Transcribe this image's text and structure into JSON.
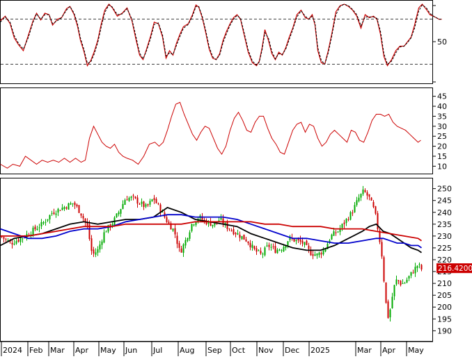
{
  "chart_data": [
    {
      "type": "line",
      "panel": "stochastic",
      "y_ticks": [
        "50"
      ],
      "ylim": [
        0,
        100
      ],
      "reference_lines": [
        80,
        20
      ],
      "series": [
        {
          "color": "#cc0000",
          "style": "solid",
          "x": [
            0,
            7,
            14,
            20,
            26,
            33,
            40,
            47,
            52,
            58,
            64,
            70,
            75,
            82,
            88,
            95,
            100,
            106,
            111,
            115,
            120,
            125,
            130,
            135,
            140,
            145,
            150,
            156,
            161,
            168,
            175,
            182,
            189,
            195,
            200,
            205,
            210,
            216,
            221,
            227,
            233,
            238,
            243,
            248,
            253,
            258,
            263,
            270,
            276,
            281,
            285,
            290,
            295,
            300,
            305,
            310,
            315,
            320,
            325,
            330,
            335,
            340,
            345,
            350,
            356,
            362,
            368,
            372,
            376,
            380,
            385,
            390,
            395,
            400,
            405,
            410,
            415,
            420,
            426,
            432,
            438,
            443,
            448,
            452,
            456,
            461,
            466,
            471,
            476,
            482,
            488,
            494,
            500,
            506,
            512,
            518,
            524,
            530,
            536,
            541,
            546,
            551,
            556,
            562,
            568,
            574,
            580,
            585,
            590,
            595,
            601,
            606,
            612,
            617,
            622,
            626,
            630,
            634
          ],
          "y": [
            78,
            84,
            74,
            55,
            46,
            38,
            58,
            78,
            88,
            79,
            88,
            86,
            72,
            80,
            82,
            94,
            97,
            86,
            70,
            52,
            37,
            18,
            25,
            37,
            52,
            74,
            92,
            100,
            95,
            84,
            88,
            95,
            78,
            52,
            32,
            26,
            40,
            58,
            76,
            74,
            56,
            28,
            38,
            32,
            48,
            60,
            70,
            74,
            86,
            99,
            96,
            82,
            62,
            40,
            28,
            26,
            34,
            52,
            64,
            74,
            82,
            86,
            80,
            60,
            36,
            22,
            18,
            24,
            42,
            66,
            52,
            34,
            26,
            36,
            32,
            42,
            56,
            68,
            86,
            92,
            82,
            80,
            86,
            72,
            38,
            22,
            20,
            38,
            60,
            90,
            98,
            100,
            97,
            92,
            84,
            68,
            86,
            82,
            84,
            80,
            60,
            30,
            18,
            26,
            38,
            44,
            44,
            50,
            56,
            72,
            95,
            100,
            93,
            86,
            84,
            82,
            80,
            80
          ]
        },
        {
          "color": "#000000",
          "style": "dashed",
          "x": [
            0,
            7,
            14,
            20,
            26,
            33,
            40,
            47,
            52,
            58,
            64,
            70,
            75,
            82,
            88,
            95,
            100,
            106,
            111,
            115,
            120,
            125,
            130,
            135,
            140,
            145,
            150,
            156,
            161,
            168,
            175,
            182,
            189,
            195,
            200,
            205,
            210,
            216,
            221,
            227,
            233,
            238,
            243,
            248,
            253,
            258,
            263,
            270,
            276,
            281,
            285,
            290,
            295,
            300,
            305,
            310,
            315,
            320,
            325,
            330,
            335,
            340,
            345,
            350,
            356,
            362,
            368,
            372,
            376,
            380,
            385,
            390,
            395,
            400,
            405,
            410,
            415,
            420,
            426,
            432,
            438,
            443,
            448,
            452,
            456,
            461,
            466,
            471,
            476,
            482,
            488,
            494,
            500,
            506,
            512,
            518,
            524,
            530,
            536,
            541,
            546,
            551,
            556,
            562,
            568,
            574,
            580,
            585,
            590,
            595,
            601,
            606,
            612,
            617,
            622,
            626,
            630,
            634
          ],
          "y": [
            76,
            83,
            76,
            58,
            48,
            40,
            55,
            76,
            87,
            80,
            86,
            86,
            74,
            78,
            82,
            92,
            97,
            88,
            73,
            55,
            40,
            21,
            23,
            34,
            49,
            70,
            89,
            99,
            96,
            86,
            87,
            94,
            80,
            56,
            35,
            27,
            38,
            55,
            73,
            75,
            59,
            31,
            35,
            33,
            45,
            57,
            68,
            73,
            84,
            97,
            97,
            84,
            65,
            43,
            30,
            26,
            32,
            49,
            61,
            72,
            80,
            85,
            81,
            63,
            39,
            24,
            19,
            23,
            39,
            62,
            55,
            37,
            27,
            34,
            33,
            40,
            53,
            66,
            83,
            91,
            84,
            80,
            84,
            75,
            42,
            25,
            20,
            35,
            57,
            86,
            97,
            100,
            98,
            93,
            86,
            71,
            83,
            83,
            83,
            81,
            64,
            34,
            20,
            24,
            35,
            43,
            44,
            49,
            55,
            68,
            91,
            99,
            95,
            88,
            84,
            82,
            80,
            80
          ]
        }
      ]
    },
    {
      "type": "line",
      "panel": "adx",
      "y_ticks": [
        "45",
        "40",
        "35",
        "30",
        "25",
        "20",
        "15",
        "10"
      ],
      "ylim": [
        7,
        48
      ],
      "series": [
        {
          "color": "#cc0000",
          "style": "solid",
          "x": [
            0,
            10,
            18,
            28,
            36,
            44,
            52,
            60,
            68,
            76,
            84,
            92,
            100,
            108,
            116,
            122,
            128,
            134,
            140,
            146,
            152,
            158,
            164,
            170,
            176,
            182,
            190,
            198,
            206,
            214,
            222,
            228,
            234,
            240,
            246,
            252,
            258,
            264,
            270,
            276,
            282,
            288,
            294,
            300,
            306,
            312,
            318,
            324,
            330,
            336,
            342,
            348,
            354,
            360,
            366,
            372,
            378,
            384,
            390,
            396,
            402,
            408,
            414,
            420,
            426,
            432,
            438,
            444,
            450,
            456,
            462,
            468,
            474,
            480,
            486,
            492,
            498,
            504,
            510,
            516,
            522,
            528,
            534,
            540,
            546,
            552,
            558,
            564,
            570,
            576,
            582,
            588,
            594,
            600,
            604
          ],
          "y": [
            11,
            9,
            11,
            10,
            15,
            13,
            11,
            13,
            12,
            13,
            12,
            14,
            12,
            14,
            12,
            13,
            24,
            30,
            26,
            22,
            20,
            19,
            21,
            17,
            15,
            14,
            13,
            11,
            15,
            21,
            22,
            20,
            22,
            28,
            35,
            41,
            42,
            36,
            31,
            26,
            23,
            27,
            30,
            29,
            24,
            19,
            16,
            20,
            28,
            34,
            37,
            33,
            28,
            27,
            32,
            35,
            35,
            29,
            24,
            21,
            17,
            16,
            22,
            28,
            31,
            32,
            27,
            31,
            30,
            24,
            20,
            22,
            26,
            28,
            26,
            24,
            22,
            28,
            27,
            23,
            22,
            27,
            33,
            36,
            36,
            35,
            36,
            32,
            30,
            29,
            28,
            26,
            24,
            22,
            23
          ]
        }
      ]
    },
    {
      "type": "candlestick",
      "panel": "price",
      "y_ticks": [
        "250",
        "245",
        "240",
        "235",
        "230",
        "225",
        "220",
        "215",
        "210",
        "205",
        "200",
        "195",
        "190"
      ],
      "ylim": [
        186,
        254
      ],
      "price_label": "216.4200",
      "x_ticks": [
        "2024",
        "Feb",
        "Mar",
        "Apr",
        "May",
        "Jun",
        "Jul",
        "Aug",
        "Sep",
        "Oct",
        "Nov",
        "Dec",
        "2025",
        "Mar",
        "Apr",
        "May"
      ],
      "price_series": {
        "x": [
          0,
          15,
          30,
          45,
          60,
          75,
          90,
          105,
          115,
          125,
          132,
          140,
          150,
          160,
          170,
          180,
          190,
          200,
          210,
          220,
          230,
          240,
          250,
          258,
          266,
          275,
          285,
          295,
          305,
          315,
          325,
          335,
          345,
          355,
          365,
          375,
          385,
          395,
          405,
          415,
          425,
          435,
          445,
          455,
          465,
          475,
          485,
          495,
          505,
          515,
          522,
          530,
          538,
          544,
          548,
          552,
          556,
          560,
          565,
          570,
          575,
          580,
          585,
          590,
          595,
          600,
          605
        ],
        "y": [
          230,
          227,
          229,
          232,
          235,
          240,
          242,
          244,
          240,
          234,
          222,
          224,
          232,
          235,
          240,
          246,
          246,
          244,
          242,
          246,
          241,
          236,
          232,
          223,
          228,
          235,
          238,
          236,
          235,
          237,
          234,
          232,
          230,
          228,
          224,
          222,
          226,
          224,
          225,
          229,
          228,
          227,
          223,
          222,
          224,
          230,
          232,
          236,
          240,
          246,
          249,
          246,
          240,
          230,
          222,
          208,
          195,
          199,
          208,
          212,
          210,
          210,
          212,
          214,
          216,
          218,
          216
        ]
      },
      "series": [
        {
          "color": "#000000",
          "x": [
            0,
            20,
            40,
            60,
            80,
            100,
            120,
            140,
            160,
            180,
            200,
            220,
            240,
            260,
            280,
            300,
            320,
            340,
            360,
            380,
            400,
            420,
            440,
            460,
            480,
            500,
            520,
            530,
            540,
            550,
            560,
            570,
            580,
            590,
            600,
            605
          ],
          "y": [
            226,
            229,
            230,
            231,
            233,
            235,
            236,
            235,
            236,
            237,
            237,
            238,
            242,
            240,
            237,
            236,
            235,
            234,
            231,
            229,
            227,
            225,
            224,
            224,
            226,
            229,
            232,
            234,
            235,
            232,
            231,
            229,
            227,
            225,
            224,
            223
          ]
        },
        {
          "color": "#0000cc",
          "x": [
            0,
            20,
            40,
            60,
            80,
            100,
            120,
            140,
            160,
            180,
            200,
            220,
            240,
            260,
            280,
            300,
            320,
            340,
            360,
            380,
            400,
            420,
            440,
            460,
            480,
            500,
            520,
            540,
            550,
            560,
            570,
            580,
            590,
            600,
            605
          ],
          "y": [
            233,
            231,
            229,
            229,
            230,
            232,
            233,
            233,
            234,
            236,
            237,
            238,
            239,
            239,
            238,
            238,
            238,
            237,
            235,
            233,
            231,
            229,
            229,
            228,
            227,
            227,
            228,
            229,
            229,
            228,
            227,
            227,
            226,
            226,
            225
          ]
        },
        {
          "color": "#cc0000",
          "x": [
            0,
            20,
            40,
            60,
            80,
            100,
            120,
            140,
            160,
            180,
            200,
            220,
            240,
            260,
            280,
            300,
            320,
            340,
            360,
            380,
            400,
            420,
            440,
            460,
            480,
            500,
            520,
            540,
            560,
            580,
            600,
            605
          ],
          "y": [
            230,
            230,
            230,
            231,
            232,
            233,
            234,
            234,
            234,
            235,
            235,
            235,
            235,
            235,
            236,
            236,
            236,
            236,
            236,
            235,
            235,
            234,
            234,
            234,
            233,
            233,
            233,
            232,
            231,
            230,
            229,
            228
          ]
        }
      ]
    }
  ]
}
